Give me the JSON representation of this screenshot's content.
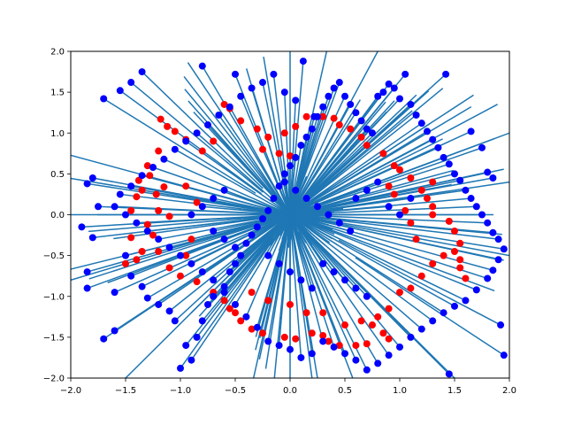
{
  "chart_data": {
    "type": "scatter",
    "title": "",
    "xlabel": "",
    "ylabel": "",
    "xlim": [
      -2,
      2
    ],
    "ylim": [
      -2,
      2
    ],
    "grid": false,
    "x_ticks": [
      -2.0,
      -1.5,
      -1.0,
      -0.5,
      0.0,
      0.5,
      1.0,
      1.5,
      2.0
    ],
    "y_ticks": [
      -2.0,
      -1.5,
      -1.0,
      -0.5,
      0.0,
      0.5,
      1.0,
      1.5,
      2.0
    ],
    "x_tick_labels": [
      "−2.0",
      "−1.5",
      "−1.0",
      "−0.5",
      "0.0",
      "0.5",
      "1.0",
      "1.5",
      "2.0"
    ],
    "y_tick_labels": [
      "−2.0",
      "−1.5",
      "−1.0",
      "−0.5",
      "0.0",
      "0.5",
      "1.0",
      "1.5",
      "2.0"
    ],
    "colors": {
      "red_points": "#ff0000",
      "blue_points": "#0000ff",
      "lines": "#1f77b4"
    },
    "series": [
      {
        "color": "#ff0000",
        "points": [
          [
            -1.18,
            1.17
          ],
          [
            -1.12,
            1.08
          ],
          [
            -1.05,
            1.02
          ],
          [
            -0.95,
            0.92
          ],
          [
            -1.2,
            0.78
          ],
          [
            -1.3,
            0.6
          ],
          [
            -1.28,
            0.48
          ],
          [
            -1.38,
            0.42
          ],
          [
            -1.15,
            0.34
          ],
          [
            -1.35,
            0.3
          ],
          [
            -1.22,
            0.25
          ],
          [
            -1.4,
            0.22
          ],
          [
            -1.45,
            0.05
          ],
          [
            -1.2,
            0.05
          ],
          [
            -1.1,
            -0.02
          ],
          [
            -1.3,
            -0.12
          ],
          [
            -1.25,
            -0.25
          ],
          [
            -1.45,
            -0.28
          ],
          [
            -1.35,
            -0.45
          ],
          [
            -1.2,
            -0.45
          ],
          [
            -1.4,
            -0.55
          ],
          [
            -1.5,
            -0.6
          ],
          [
            -1.1,
            -0.65
          ],
          [
            -1.0,
            -0.75
          ],
          [
            -0.85,
            -0.82
          ],
          [
            -0.7,
            -0.95
          ],
          [
            -0.6,
            -1.05
          ],
          [
            -0.55,
            -1.15
          ],
          [
            -0.5,
            -1.2
          ],
          [
            -0.45,
            -1.3
          ],
          [
            -0.35,
            -1.4
          ],
          [
            -0.25,
            -1.45
          ],
          [
            -0.05,
            -1.5
          ],
          [
            0.05,
            -1.52
          ],
          [
            0.2,
            -1.45
          ],
          [
            0.3,
            -1.48
          ],
          [
            0.35,
            -1.55
          ],
          [
            0.45,
            -1.6
          ],
          [
            0.6,
            -1.6
          ],
          [
            0.7,
            -1.58
          ],
          [
            0.9,
            -1.52
          ],
          [
            0.5,
            -1.35
          ],
          [
            0.65,
            -1.3
          ],
          [
            0.8,
            -1.25
          ],
          [
            0.9,
            -1.15
          ],
          [
            1.0,
            -0.95
          ],
          [
            1.1,
            -0.9
          ],
          [
            1.2,
            -0.75
          ],
          [
            1.3,
            -0.6
          ],
          [
            1.4,
            -0.5
          ],
          [
            1.5,
            -0.45
          ],
          [
            1.55,
            -0.55
          ],
          [
            1.55,
            -0.65
          ],
          [
            1.6,
            -0.78
          ],
          [
            1.55,
            -0.35
          ],
          [
            1.5,
            -0.2
          ],
          [
            1.45,
            -0.08
          ],
          [
            1.3,
            0.0
          ],
          [
            1.3,
            0.1
          ],
          [
            1.25,
            0.2
          ],
          [
            1.2,
            0.3
          ],
          [
            1.3,
            0.4
          ],
          [
            1.1,
            0.45
          ],
          [
            1.0,
            0.55
          ],
          [
            0.95,
            0.6
          ],
          [
            0.85,
            0.75
          ],
          [
            0.7,
            0.85
          ],
          [
            0.65,
            0.95
          ],
          [
            0.55,
            1.05
          ],
          [
            0.45,
            1.1
          ],
          [
            0.4,
            1.18
          ],
          [
            0.3,
            1.2
          ],
          [
            0.15,
            1.2
          ],
          [
            0.05,
            1.08
          ],
          [
            -0.05,
            1.0
          ],
          [
            -0.2,
            0.95
          ],
          [
            -0.3,
            1.05
          ],
          [
            -0.45,
            1.15
          ],
          [
            -0.55,
            1.3
          ],
          [
            -0.6,
            1.35
          ],
          [
            -0.7,
            0.9
          ],
          [
            -0.8,
            0.78
          ],
          [
            -0.25,
            0.8
          ],
          [
            -0.1,
            0.75
          ],
          [
            0.0,
            0.72
          ],
          [
            -0.35,
            -0.95
          ],
          [
            -0.2,
            -1.05
          ],
          [
            0.0,
            -1.1
          ],
          [
            0.15,
            -1.2
          ],
          [
            0.3,
            -1.2
          ],
          [
            0.75,
            -1.35
          ],
          [
            0.85,
            -1.45
          ],
          [
            0.95,
            0.25
          ],
          [
            0.9,
            0.35
          ],
          [
            1.05,
            0.05
          ],
          [
            1.1,
            -0.1
          ],
          [
            1.15,
            -0.3
          ],
          [
            -0.95,
            -0.5
          ],
          [
            -0.9,
            -0.3
          ],
          [
            -0.85,
            0.15
          ],
          [
            -0.95,
            0.35
          ]
        ]
      },
      {
        "color": "#0000ff",
        "points": [
          [
            -1.7,
            1.42
          ],
          [
            -1.8,
            0.45
          ],
          [
            -1.85,
            0.38
          ],
          [
            -1.75,
            0.1
          ],
          [
            -1.9,
            -0.15
          ],
          [
            -1.8,
            -0.28
          ],
          [
            -1.85,
            -0.7
          ],
          [
            -1.85,
            -0.9
          ],
          [
            -1.7,
            -1.52
          ],
          [
            -1.6,
            -1.42
          ],
          [
            -1.5,
            -0.5
          ],
          [
            -1.6,
            -0.95
          ],
          [
            -1.45,
            -0.75
          ],
          [
            -1.35,
            -0.88
          ],
          [
            -1.3,
            -1.02
          ],
          [
            -1.2,
            -1.1
          ],
          [
            -1.1,
            -1.18
          ],
          [
            -1.05,
            -1.3
          ],
          [
            -1.0,
            -1.88
          ],
          [
            -0.95,
            -1.6
          ],
          [
            -0.9,
            -1.78
          ],
          [
            -0.85,
            -1.5
          ],
          [
            -0.8,
            -1.3
          ],
          [
            -0.75,
            -1.1
          ],
          [
            -0.7,
            -1.0
          ],
          [
            -0.6,
            -0.88
          ],
          [
            -0.55,
            -0.7
          ],
          [
            -0.5,
            -0.6
          ],
          [
            -0.45,
            -0.5
          ],
          [
            -0.4,
            -0.35
          ],
          [
            -0.35,
            -0.25
          ],
          [
            -0.3,
            -0.15
          ],
          [
            -0.25,
            -0.05
          ],
          [
            -0.2,
            0.05
          ],
          [
            -0.15,
            0.2
          ],
          [
            -0.1,
            0.35
          ],
          [
            -0.05,
            0.5
          ],
          [
            0.0,
            0.6
          ],
          [
            0.05,
            0.7
          ],
          [
            0.1,
            0.85
          ],
          [
            0.15,
            0.95
          ],
          [
            0.2,
            1.05
          ],
          [
            0.25,
            1.2
          ],
          [
            0.3,
            1.32
          ],
          [
            0.35,
            1.45
          ],
          [
            0.4,
            1.55
          ],
          [
            0.45,
            1.62
          ],
          [
            0.5,
            1.45
          ],
          [
            0.55,
            1.35
          ],
          [
            0.6,
            1.25
          ],
          [
            0.65,
            1.15
          ],
          [
            0.7,
            1.05
          ],
          [
            0.75,
            1.0
          ],
          [
            0.8,
            1.45
          ],
          [
            0.85,
            1.5
          ],
          [
            0.9,
            1.6
          ],
          [
            0.95,
            1.55
          ],
          [
            1.0,
            1.42
          ],
          [
            1.05,
            1.72
          ],
          [
            1.1,
            1.35
          ],
          [
            1.15,
            1.22
          ],
          [
            1.2,
            1.12
          ],
          [
            1.25,
            1.02
          ],
          [
            1.3,
            0.92
          ],
          [
            1.35,
            0.82
          ],
          [
            1.4,
            0.7
          ],
          [
            1.45,
            0.62
          ],
          [
            1.5,
            0.5
          ],
          [
            1.55,
            0.42
          ],
          [
            1.6,
            0.3
          ],
          [
            1.65,
            0.2
          ],
          [
            1.7,
            0.1
          ],
          [
            1.75,
            0.0
          ],
          [
            1.8,
            -0.1
          ],
          [
            1.85,
            -0.22
          ],
          [
            1.9,
            -0.3
          ],
          [
            1.95,
            -0.42
          ],
          [
            1.9,
            -0.55
          ],
          [
            1.85,
            -0.68
          ],
          [
            1.8,
            -0.78
          ],
          [
            1.7,
            -0.92
          ],
          [
            1.6,
            -1.05
          ],
          [
            1.5,
            -1.12
          ],
          [
            1.4,
            -1.2
          ],
          [
            1.3,
            -1.3
          ],
          [
            1.2,
            -1.4
          ],
          [
            1.1,
            -1.5
          ],
          [
            1.0,
            -1.62
          ],
          [
            0.9,
            -1.72
          ],
          [
            0.8,
            -1.82
          ],
          [
            0.7,
            -1.9
          ],
          [
            0.6,
            -1.78
          ],
          [
            0.5,
            -1.7
          ],
          [
            0.4,
            -1.62
          ],
          [
            0.3,
            -1.55
          ],
          [
            0.2,
            -1.7
          ],
          [
            0.1,
            -1.75
          ],
          [
            0.0,
            -1.65
          ],
          [
            -0.1,
            -1.6
          ],
          [
            -0.2,
            -1.55
          ],
          [
            -0.3,
            -1.38
          ],
          [
            -0.4,
            -1.25
          ],
          [
            -0.5,
            -1.1
          ],
          [
            -0.6,
            -0.95
          ],
          [
            -0.7,
            -0.8
          ],
          [
            -0.8,
            -0.7
          ],
          [
            -0.9,
            -0.6
          ],
          [
            -1.0,
            -0.5
          ],
          [
            -1.1,
            -0.4
          ],
          [
            -1.2,
            -0.3
          ],
          [
            -1.3,
            -0.2
          ],
          [
            -1.4,
            -0.1
          ],
          [
            -1.5,
            0.0
          ],
          [
            -1.6,
            0.1
          ],
          [
            -1.55,
            0.25
          ],
          [
            -1.45,
            0.35
          ],
          [
            -1.35,
            0.48
          ],
          [
            -1.25,
            0.58
          ],
          [
            -1.15,
            0.68
          ],
          [
            -1.05,
            0.8
          ],
          [
            -0.95,
            0.9
          ],
          [
            -0.85,
            1.0
          ],
          [
            -0.75,
            1.1
          ],
          [
            -0.65,
            1.22
          ],
          [
            -0.55,
            1.32
          ],
          [
            -0.45,
            1.45
          ],
          [
            -0.35,
            1.55
          ],
          [
            -0.25,
            1.62
          ],
          [
            -0.15,
            1.72
          ],
          [
            -0.05,
            1.5
          ],
          [
            0.05,
            1.4
          ],
          [
            0.12,
            1.88
          ],
          [
            0.22,
            1.2
          ],
          [
            -0.5,
            1.72
          ],
          [
            -0.8,
            1.82
          ],
          [
            -1.45,
            1.62
          ],
          [
            -1.55,
            1.52
          ],
          [
            -1.35,
            1.75
          ],
          [
            1.42,
            1.72
          ],
          [
            1.65,
            1.02
          ],
          [
            1.75,
            0.82
          ],
          [
            1.8,
            0.52
          ],
          [
            1.85,
            0.45
          ],
          [
            1.45,
            -1.95
          ],
          [
            1.95,
            -1.72
          ],
          [
            1.92,
            -1.35
          ],
          [
            0.55,
            -0.2
          ],
          [
            0.45,
            -0.1
          ],
          [
            0.35,
            0.0
          ],
          [
            0.25,
            0.1
          ],
          [
            0.15,
            0.2
          ],
          [
            0.05,
            0.3
          ],
          [
            -0.05,
            0.4
          ],
          [
            0.6,
            0.2
          ],
          [
            0.7,
            0.3
          ],
          [
            0.8,
            0.4
          ],
          [
            0.9,
            0.1
          ],
          [
            1.0,
            0.0
          ],
          [
            1.1,
            0.2
          ],
          [
            -0.6,
            0.3
          ],
          [
            -0.7,
            0.2
          ],
          [
            -0.8,
            0.1
          ],
          [
            -0.9,
            0.0
          ],
          [
            -0.7,
            -0.2
          ],
          [
            -0.6,
            -0.3
          ],
          [
            -0.5,
            -0.4
          ],
          [
            0.3,
            -0.6
          ],
          [
            0.4,
            -0.7
          ],
          [
            0.5,
            -0.8
          ],
          [
            0.6,
            -0.9
          ],
          [
            0.7,
            -1.0
          ],
          [
            0.2,
            -0.9
          ],
          [
            0.1,
            -0.8
          ],
          [
            0.0,
            -0.7
          ],
          [
            -0.1,
            -0.6
          ],
          [
            -0.2,
            -0.5
          ]
        ]
      }
    ]
  }
}
